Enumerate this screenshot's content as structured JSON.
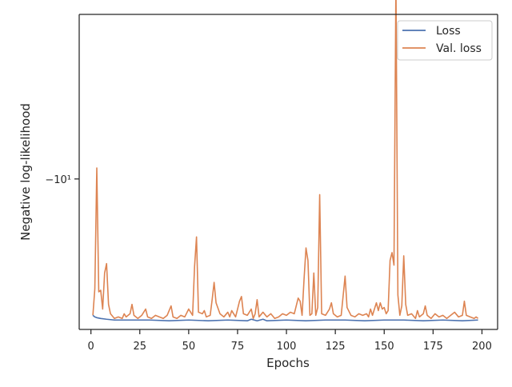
{
  "chart_data": {
    "type": "line",
    "xlabel": "Epochs",
    "ylabel": "Negative log-likelihood",
    "xlim": [
      -6,
      208
    ],
    "x_ticks": [
      0,
      25,
      50,
      75,
      100,
      125,
      150,
      175,
      200
    ],
    "x_tick_labels": [
      "0",
      "25",
      "50",
      "75",
      "100",
      "125",
      "150",
      "175",
      "200"
    ],
    "y_scale": "symlog",
    "ylim": [
      -10.96,
      -8.95
    ],
    "y_ticks": [
      -10
    ],
    "y_tick_labels": [
      "−10¹"
    ],
    "grid": false,
    "legend_position": "upper right",
    "series": [
      {
        "name": "Loss",
        "color": "#4c72b0",
        "points": [
          [
            1,
            -10.87
          ],
          [
            2,
            -10.88
          ],
          [
            3,
            -10.885
          ],
          [
            5,
            -10.89
          ],
          [
            8,
            -10.895
          ],
          [
            12,
            -10.9
          ],
          [
            20,
            -10.9
          ],
          [
            30,
            -10.9
          ],
          [
            40,
            -10.905
          ],
          [
            50,
            -10.9
          ],
          [
            60,
            -10.905
          ],
          [
            70,
            -10.9
          ],
          [
            80,
            -10.905
          ],
          [
            82,
            -10.895
          ],
          [
            85,
            -10.905
          ],
          [
            88,
            -10.895
          ],
          [
            90,
            -10.905
          ],
          [
            100,
            -10.9
          ],
          [
            110,
            -10.905
          ],
          [
            120,
            -10.9
          ],
          [
            130,
            -10.9
          ],
          [
            140,
            -10.905
          ],
          [
            150,
            -10.9
          ],
          [
            160,
            -10.9
          ],
          [
            170,
            -10.905
          ],
          [
            180,
            -10.9
          ],
          [
            190,
            -10.905
          ],
          [
            198,
            -10.9
          ]
        ]
      },
      {
        "name": "Val. loss",
        "color": "#dd8452",
        "points": [
          [
            1,
            -10.87
          ],
          [
            2,
            -10.7
          ],
          [
            3,
            -9.93
          ],
          [
            4,
            -10.72
          ],
          [
            5,
            -10.71
          ],
          [
            6,
            -10.83
          ],
          [
            7,
            -10.6
          ],
          [
            8,
            -10.54
          ],
          [
            9,
            -10.8
          ],
          [
            10,
            -10.86
          ],
          [
            12,
            -10.89
          ],
          [
            14,
            -10.88
          ],
          [
            16,
            -10.89
          ],
          [
            17,
            -10.86
          ],
          [
            18,
            -10.88
          ],
          [
            20,
            -10.86
          ],
          [
            21,
            -10.8
          ],
          [
            22,
            -10.87
          ],
          [
            24,
            -10.89
          ],
          [
            26,
            -10.87
          ],
          [
            28,
            -10.83
          ],
          [
            29,
            -10.88
          ],
          [
            31,
            -10.89
          ],
          [
            33,
            -10.87
          ],
          [
            35,
            -10.88
          ],
          [
            37,
            -10.89
          ],
          [
            39,
            -10.87
          ],
          [
            41,
            -10.81
          ],
          [
            42,
            -10.88
          ],
          [
            44,
            -10.89
          ],
          [
            46,
            -10.87
          ],
          [
            48,
            -10.88
          ],
          [
            50,
            -10.83
          ],
          [
            52,
            -10.87
          ],
          [
            53,
            -10.56
          ],
          [
            54,
            -10.37
          ],
          [
            55,
            -10.85
          ],
          [
            57,
            -10.86
          ],
          [
            58,
            -10.84
          ],
          [
            59,
            -10.88
          ],
          [
            61,
            -10.87
          ],
          [
            62,
            -10.77
          ],
          [
            63,
            -10.66
          ],
          [
            64,
            -10.79
          ],
          [
            66,
            -10.86
          ],
          [
            68,
            -10.88
          ],
          [
            70,
            -10.85
          ],
          [
            71,
            -10.88
          ],
          [
            72,
            -10.84
          ],
          [
            74,
            -10.88
          ],
          [
            75,
            -10.83
          ],
          [
            76,
            -10.78
          ],
          [
            77,
            -10.75
          ],
          [
            78,
            -10.86
          ],
          [
            80,
            -10.87
          ],
          [
            82,
            -10.83
          ],
          [
            83,
            -10.89
          ],
          [
            84,
            -10.86
          ],
          [
            85,
            -10.77
          ],
          [
            86,
            -10.88
          ],
          [
            88,
            -10.85
          ],
          [
            90,
            -10.88
          ],
          [
            92,
            -10.86
          ],
          [
            94,
            -10.89
          ],
          [
            96,
            -10.88
          ],
          [
            98,
            -10.86
          ],
          [
            100,
            -10.87
          ],
          [
            102,
            -10.85
          ],
          [
            104,
            -10.86
          ],
          [
            106,
            -10.76
          ],
          [
            107,
            -10.78
          ],
          [
            108,
            -10.87
          ],
          [
            109,
            -10.64
          ],
          [
            110,
            -10.44
          ],
          [
            111,
            -10.52
          ],
          [
            112,
            -10.87
          ],
          [
            113,
            -10.86
          ],
          [
            114,
            -10.6
          ],
          [
            115,
            -10.87
          ],
          [
            116,
            -10.82
          ],
          [
            117,
            -10.1
          ],
          [
            118,
            -10.86
          ],
          [
            120,
            -10.87
          ],
          [
            122,
            -10.83
          ],
          [
            123,
            -10.79
          ],
          [
            124,
            -10.86
          ],
          [
            126,
            -10.88
          ],
          [
            128,
            -10.87
          ],
          [
            130,
            -10.62
          ],
          [
            131,
            -10.82
          ],
          [
            133,
            -10.87
          ],
          [
            135,
            -10.88
          ],
          [
            137,
            -10.86
          ],
          [
            139,
            -10.87
          ],
          [
            141,
            -10.86
          ],
          [
            142,
            -10.88
          ],
          [
            143,
            -10.83
          ],
          [
            144,
            -10.87
          ],
          [
            146,
            -10.79
          ],
          [
            147,
            -10.84
          ],
          [
            148,
            -10.79
          ],
          [
            149,
            -10.83
          ],
          [
            150,
            -10.82
          ],
          [
            151,
            -10.86
          ],
          [
            152,
            -10.84
          ],
          [
            153,
            -10.52
          ],
          [
            154,
            -10.47
          ],
          [
            155,
            -10.55
          ],
          [
            156,
            -8.74
          ],
          [
            157,
            -10.74
          ],
          [
            158,
            -10.87
          ],
          [
            159,
            -10.81
          ],
          [
            160,
            -10.49
          ],
          [
            161,
            -10.8
          ],
          [
            162,
            -10.87
          ],
          [
            164,
            -10.86
          ],
          [
            166,
            -10.89
          ],
          [
            167,
            -10.84
          ],
          [
            168,
            -10.88
          ],
          [
            170,
            -10.86
          ],
          [
            171,
            -10.81
          ],
          [
            172,
            -10.87
          ],
          [
            174,
            -10.89
          ],
          [
            176,
            -10.86
          ],
          [
            178,
            -10.88
          ],
          [
            180,
            -10.87
          ],
          [
            182,
            -10.89
          ],
          [
            184,
            -10.87
          ],
          [
            186,
            -10.85
          ],
          [
            188,
            -10.88
          ],
          [
            190,
            -10.87
          ],
          [
            191,
            -10.78
          ],
          [
            192,
            -10.87
          ],
          [
            194,
            -10.88
          ],
          [
            196,
            -10.89
          ],
          [
            197,
            -10.88
          ],
          [
            198,
            -10.89
          ]
        ]
      }
    ]
  }
}
